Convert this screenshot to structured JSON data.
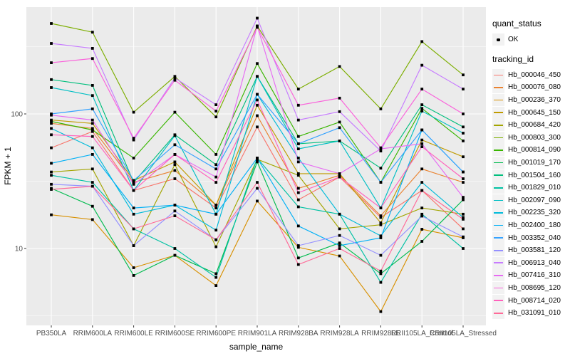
{
  "chart_data": {
    "type": "line",
    "title": "",
    "xlabel": "sample_name",
    "ylabel": "FPKM + 1",
    "y_scale": "log10",
    "ylim": [
      2.7,
      620
    ],
    "y_ticks": [
      100,
      10
    ],
    "y_tick_labels": [
      "100",
      "10"
    ],
    "y_minor_gridlines": [
      316.23,
      31.623,
      3.1623
    ],
    "grid": "on",
    "panel_bg": "#EBEBEB",
    "grid_color": "#FFFFFF",
    "tick_color": "#333333",
    "tick_label_color": "#4D4D4D",
    "point_color": "#000000",
    "legend_position": "right",
    "quant_legend": {
      "title": "quant_status",
      "label": "OK"
    },
    "legend_title": "tracking_id",
    "x_categories": [
      "PB350LA",
      "RRIM600LA",
      "RRIM600LE",
      "RRIM600SE",
      "RRIM600PE",
      "RRIM901LA",
      "RRIM928BA",
      "RRIM928LA",
      "RRIM928LE",
      "RRII105LA_Control",
      "RRII105LA_Stressed"
    ],
    "series": [
      {
        "name": "Hb_000046_450",
        "color": "#F8766D",
        "values": [
          56,
          74,
          27,
          33,
          20,
          80,
          23,
          34,
          17,
          27,
          14
        ]
      },
      {
        "name": "Hb_000076_080",
        "color": "#EA8331",
        "values": [
          85,
          78,
          31,
          38,
          21,
          97,
          28,
          35,
          17.5,
          39,
          31
        ]
      },
      {
        "name": "Hb_000236_370",
        "color": "#D89000",
        "values": [
          17.8,
          16.4,
          7.2,
          8.9,
          5.3,
          22.5,
          10.2,
          8.8,
          3.4,
          13.9,
          12
        ]
      },
      {
        "name": "Hb_000645_150",
        "color": "#C09B00",
        "values": [
          90,
          85,
          32,
          44,
          21,
          116,
          36,
          36,
          15.5,
          64,
          48
        ]
      },
      {
        "name": "Hb_000684_420",
        "color": "#A3A500",
        "values": [
          37,
          39,
          10.5,
          42,
          10.3,
          46,
          35,
          14,
          15,
          20,
          18
        ]
      },
      {
        "name": "Hb_000803_300",
        "color": "#7CAE00",
        "values": [
          470,
          405,
          103,
          190,
          95,
          450,
          153,
          225,
          109,
          345,
          195
        ]
      },
      {
        "name": "Hb_000814_090",
        "color": "#39B600",
        "values": [
          88,
          76,
          47,
          103,
          50,
          237,
          68,
          87,
          31,
          110,
          63
        ]
      },
      {
        "name": "Hb_001019_170",
        "color": "#00BB4E",
        "values": [
          28,
          20.6,
          6.3,
          8.9,
          6.5,
          44,
          8.5,
          11,
          6.5,
          11.3,
          23
        ]
      },
      {
        "name": "Hb_001504_160",
        "color": "#00BF7D",
        "values": [
          180,
          163,
          31,
          70,
          42,
          190,
          60,
          63,
          39.5,
          117,
          80
        ]
      },
      {
        "name": "Hb_001829_010",
        "color": "#00C1A3",
        "values": [
          35,
          31,
          14,
          10,
          6.1,
          47,
          20.4,
          18,
          5.6,
          18,
          10
        ]
      },
      {
        "name": "Hb_002097_090",
        "color": "#00BFC4",
        "values": [
          157,
          137,
          27,
          69,
          18,
          190,
          55,
          63,
          20,
          105,
          72
        ]
      },
      {
        "name": "Hb_002235_320",
        "color": "#00BBDA",
        "values": [
          78,
          56,
          18,
          21,
          13.7,
          140,
          47,
          18,
          12.4,
          31,
          17
        ]
      },
      {
        "name": "Hb_002400_180",
        "color": "#00B0F6",
        "values": [
          43,
          50,
          20,
          21,
          18,
          47,
          14.7,
          10.5,
          12,
          76,
          37
        ]
      },
      {
        "name": "Hb_003352_040",
        "color": "#35A2FF",
        "values": [
          100,
          109,
          32,
          59,
          39,
          140,
          60,
          79,
          31,
          76,
          37
        ]
      },
      {
        "name": "Hb_003581_120",
        "color": "#9590FF",
        "values": [
          30,
          29,
          10.5,
          19,
          11.6,
          28,
          10.5,
          12.5,
          8.9,
          17.4,
          12.2
        ]
      },
      {
        "name": "Hb_006913_040",
        "color": "#C77CFF",
        "values": [
          334,
          307,
          64,
          185,
          117,
          515,
          90,
          104,
          53,
          230,
          153
        ]
      },
      {
        "name": "Hb_007416_310",
        "color": "#E76BF3",
        "values": [
          98,
          90,
          30,
          50,
          34,
          450,
          44,
          36,
          55,
          60,
          24
        ]
      },
      {
        "name": "Hb_008695_120",
        "color": "#FA62DB",
        "values": [
          240,
          258,
          66,
          178,
          105,
          440,
          116,
          131,
          56,
          153,
          100
        ]
      },
      {
        "name": "Hb_008714_020",
        "color": "#FF62BC",
        "values": [
          70,
          68,
          27,
          50,
          31,
          127,
          26,
          34,
          20,
          57,
          33
        ]
      },
      {
        "name": "Hb_031091_010",
        "color": "#FF6A98",
        "values": [
          27.5,
          29,
          14,
          17.5,
          11.6,
          31,
          7.6,
          10,
          6.8,
          27,
          16.5
        ]
      }
    ]
  }
}
